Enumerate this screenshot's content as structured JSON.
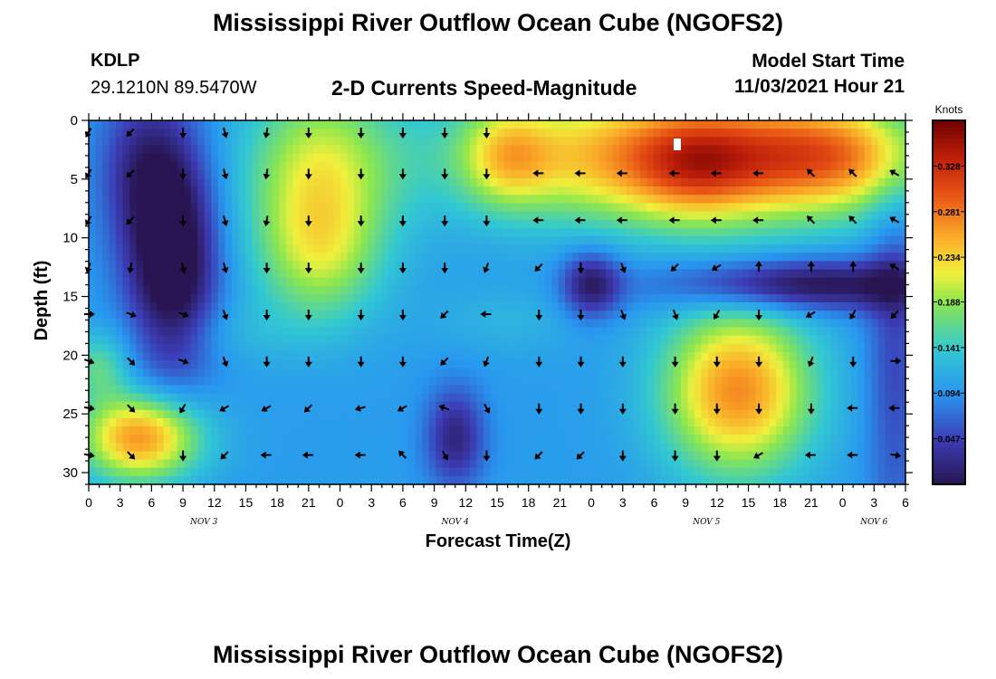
{
  "title": "Mississippi River Outflow Ocean Cube (NGOFS2)",
  "station": {
    "id": "KDLP",
    "coords": "29.1210N  89.5470W"
  },
  "product": "2-D Currents Speed-Magnitude",
  "model_start": {
    "label": "Model Start Time",
    "value": "11/03/2021 Hour 21"
  },
  "chart_data": {
    "type": "heatmap",
    "title": "2-D Currents Speed-Magnitude",
    "xlabel": "Forecast Time(Z)",
    "ylabel": "Depth (ft)",
    "x_range_hours": [
      0,
      78
    ],
    "y_range_ft": [
      0,
      31
    ],
    "x_tick_labels": [
      "0",
      "3",
      "6",
      "9",
      "12",
      "15",
      "18",
      "21",
      "0",
      "3",
      "6",
      "9",
      "12",
      "15",
      "18",
      "21",
      "0",
      "3",
      "6",
      "9",
      "12",
      "15",
      "18",
      "21",
      "0",
      "3",
      "6"
    ],
    "date_labels": [
      {
        "text": "NOV 3",
        "hour": 11
      },
      {
        "text": "NOV 4",
        "hour": 35
      },
      {
        "text": "NOV 5",
        "hour": 59
      },
      {
        "text": "NOV 6",
        "hour": 75
      }
    ],
    "y_ticks": [
      0,
      5,
      10,
      15,
      20,
      25,
      30
    ],
    "colorbar": {
      "label": "Knots",
      "min": 0.0,
      "max": 0.375,
      "ticks": [
        0.047,
        0.094,
        0.141,
        0.188,
        0.234,
        0.281,
        0.328
      ]
    },
    "speed_blobs_knots": [
      {
        "t": 8,
        "d": 12,
        "st": 3,
        "sd": 7,
        "v": -0.13
      },
      {
        "t": 5,
        "d": 4,
        "st": 3,
        "sd": 5,
        "v": -0.06
      },
      {
        "t": 22,
        "d": 5,
        "st": 5,
        "sd": 6,
        "v": 0.11
      },
      {
        "t": 22,
        "d": 12,
        "st": 4,
        "sd": 4,
        "v": 0.06
      },
      {
        "t": 58,
        "d": 3,
        "st": 14,
        "sd": 4,
        "v": 0.19
      },
      {
        "t": 58,
        "d": 4,
        "st": 4,
        "sd": 3,
        "v": 0.06
      },
      {
        "t": 40,
        "d": 3,
        "st": 3,
        "sd": 3,
        "v": 0.08
      },
      {
        "t": 71,
        "d": 3,
        "st": 6,
        "sd": 3,
        "v": 0.08
      },
      {
        "t": 62,
        "d": 23,
        "st": 5,
        "sd": 5,
        "v": 0.17
      },
      {
        "t": 5,
        "d": 27,
        "st": 4,
        "sd": 2.6,
        "v": 0.17
      },
      {
        "t": 1,
        "d": 21,
        "st": 2,
        "sd": 2,
        "v": 0.06
      },
      {
        "t": 68,
        "d": 14,
        "st": 9,
        "sd": 1.6,
        "v": -0.11
      },
      {
        "t": 48,
        "d": 14,
        "st": 2,
        "sd": 2,
        "v": -0.09
      },
      {
        "t": 35,
        "d": 27,
        "st": 2,
        "sd": 3,
        "v": -0.08
      },
      {
        "t": 77,
        "d": 20,
        "st": 2,
        "sd": 12,
        "v": -0.05
      },
      {
        "t": 12,
        "d": 18,
        "st": 6,
        "sd": 2,
        "v": 0.02
      },
      {
        "t": 40,
        "d": 17,
        "st": 5,
        "sd": 2,
        "v": 0.02
      }
    ],
    "vector_grid": {
      "times": [
        0,
        4,
        9,
        13,
        17,
        21,
        26,
        30,
        34,
        38,
        43,
        47,
        51,
        56,
        60,
        64,
        69,
        73,
        77
      ],
      "depths": [
        1,
        4.5,
        8.5,
        12.5,
        16.5,
        20.5,
        24.5,
        28.5
      ]
    },
    "vector_directions_deg": [
      [
        210,
        225,
        180,
        165,
        190,
        180,
        180,
        180,
        180,
        180,
        null,
        null,
        null,
        null,
        null,
        null,
        null,
        null,
        null
      ],
      [
        210,
        225,
        180,
        165,
        190,
        180,
        180,
        180,
        180,
        180,
        270,
        270,
        270,
        270,
        270,
        270,
        315,
        315,
        300
      ],
      [
        210,
        225,
        180,
        165,
        190,
        180,
        180,
        180,
        180,
        180,
        270,
        270,
        270,
        270,
        270,
        270,
        315,
        315,
        300
      ],
      [
        200,
        190,
        165,
        165,
        180,
        180,
        180,
        180,
        180,
        200,
        225,
        180,
        160,
        225,
        240,
        0,
        0,
        0,
        300
      ],
      [
        90,
        110,
        110,
        160,
        180,
        180,
        180,
        180,
        225,
        270,
        180,
        180,
        160,
        160,
        210,
        180,
        240,
        210,
        225
      ],
      [
        110,
        135,
        110,
        160,
        180,
        180,
        180,
        180,
        225,
        200,
        180,
        180,
        180,
        180,
        180,
        180,
        200,
        180,
        90
      ],
      [
        100,
        135,
        210,
        240,
        240,
        225,
        255,
        240,
        290,
        150,
        180,
        180,
        180,
        180,
        180,
        180,
        180,
        270,
        270
      ],
      [
        100,
        135,
        180,
        225,
        270,
        270,
        270,
        315,
        150,
        180,
        225,
        225,
        180,
        180,
        180,
        240,
        270,
        270,
        100
      ]
    ]
  }
}
